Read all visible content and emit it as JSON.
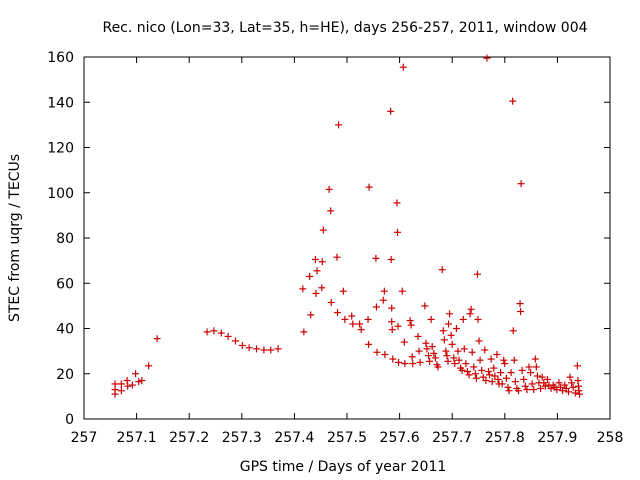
{
  "chart_data": {
    "type": "scatter",
    "title": "Rec. nico (Lon=33, Lat=35, h=HE), days 256-257, 2011, window 004",
    "xlabel": "GPS time / Days of year 2011",
    "ylabel": "STEC from uqrg / TECUs",
    "xlim": [
      257,
      258
    ],
    "ylim": [
      0,
      160
    ],
    "x_ticks": [
      "257",
      "257.1",
      "257.2",
      "257.3",
      "257.4",
      "257.5",
      "257.6",
      "257.7",
      "257.8",
      "257.9",
      "258"
    ],
    "y_ticks": [
      "0",
      "20",
      "40",
      "60",
      "80",
      "100",
      "120",
      "140",
      "160"
    ],
    "grid": false,
    "legend": "none",
    "marker": "+",
    "color": "#cc0000",
    "series": [
      {
        "points": [
          [
            257.059,
            15.5
          ],
          [
            257.059,
            13
          ],
          [
            257.059,
            11
          ],
          [
            257.071,
            15.5
          ],
          [
            257.071,
            12.5
          ],
          [
            257.082,
            17
          ],
          [
            257.083,
            14.5
          ],
          [
            257.092,
            15
          ],
          [
            257.098,
            20
          ],
          [
            257.104,
            16.5
          ],
          [
            257.11,
            17
          ],
          [
            257.123,
            23.5
          ],
          [
            257.139,
            35.5
          ],
          [
            257.234,
            38.5
          ],
          [
            257.247,
            39
          ],
          [
            257.261,
            38
          ],
          [
            257.274,
            36.5
          ],
          [
            257.288,
            34.5
          ],
          [
            257.301,
            32.5
          ],
          [
            257.314,
            31.5
          ],
          [
            257.328,
            31
          ],
          [
            257.342,
            30.5
          ],
          [
            257.355,
            30.5
          ],
          [
            257.369,
            31
          ],
          [
            257.416,
            57.5
          ],
          [
            257.418,
            38.5
          ],
          [
            257.429,
            63
          ],
          [
            257.431,
            46
          ],
          [
            257.44,
            70.5
          ],
          [
            257.441,
            55.5
          ],
          [
            257.443,
            65.5
          ],
          [
            257.452,
            58
          ],
          [
            257.453,
            69.5
          ],
          [
            257.455,
            83.5
          ],
          [
            257.466,
            101.5
          ],
          [
            257.469,
            92
          ],
          [
            257.47,
            51.5
          ],
          [
            257.481,
            71.5
          ],
          [
            257.482,
            47
          ],
          [
            257.484,
            130
          ],
          [
            257.493,
            56.5
          ],
          [
            257.496,
            44
          ],
          [
            257.509,
            45.5
          ],
          [
            257.511,
            42
          ],
          [
            257.524,
            42
          ],
          [
            257.527,
            39.5
          ],
          [
            257.54,
            44
          ],
          [
            257.541,
            33
          ],
          [
            257.542,
            102.5
          ],
          [
            257.555,
            71
          ],
          [
            257.556,
            49.5
          ],
          [
            257.557,
            29.5
          ],
          [
            257.569,
            52.5
          ],
          [
            257.571,
            56.5
          ],
          [
            257.572,
            28.5
          ],
          [
            257.583,
            136
          ],
          [
            257.584,
            70.5
          ],
          [
            257.585,
            49
          ],
          [
            257.585,
            43
          ],
          [
            257.586,
            39.5
          ],
          [
            257.587,
            26.5
          ],
          [
            257.595,
            95.5
          ],
          [
            257.596,
            82.5
          ],
          [
            257.597,
            41
          ],
          [
            257.598,
            25
          ],
          [
            257.605,
            56.5
          ],
          [
            257.607,
            155.5
          ],
          [
            257.609,
            34
          ],
          [
            257.61,
            24.5
          ],
          [
            257.62,
            43.5
          ],
          [
            257.622,
            41.5
          ],
          [
            257.624,
            27.5
          ],
          [
            257.625,
            24.5
          ],
          [
            257.635,
            36.5
          ],
          [
            257.637,
            30
          ],
          [
            257.639,
            25
          ],
          [
            257.648,
            50
          ],
          [
            257.65,
            33.5
          ],
          [
            257.652,
            31
          ],
          [
            257.655,
            28
          ],
          [
            257.657,
            25.5
          ],
          [
            257.66,
            44
          ],
          [
            257.662,
            32
          ],
          [
            257.665,
            29
          ],
          [
            257.668,
            27
          ],
          [
            257.671,
            24
          ],
          [
            257.673,
            23
          ],
          [
            257.681,
            66
          ],
          [
            257.683,
            39
          ],
          [
            257.685,
            35
          ],
          [
            257.688,
            30
          ],
          [
            257.69,
            28
          ],
          [
            257.692,
            25.5
          ],
          [
            257.693,
            42
          ],
          [
            257.695,
            46.5
          ],
          [
            257.698,
            37
          ],
          [
            257.7,
            33
          ],
          [
            257.703,
            27
          ],
          [
            257.705,
            24.5
          ],
          [
            257.708,
            40
          ],
          [
            257.711,
            30
          ],
          [
            257.713,
            26
          ],
          [
            257.716,
            22.5
          ],
          [
            257.719,
            21.5
          ],
          [
            257.721,
            44
          ],
          [
            257.723,
            31
          ],
          [
            257.726,
            24.5
          ],
          [
            257.729,
            21
          ],
          [
            257.732,
            19.5
          ],
          [
            257.734,
            46.5
          ],
          [
            257.736,
            48.5
          ],
          [
            257.738,
            29.5
          ],
          [
            257.741,
            23
          ],
          [
            257.744,
            20
          ],
          [
            257.746,
            18
          ],
          [
            257.748,
            64
          ],
          [
            257.749,
            44
          ],
          [
            257.751,
            34.5
          ],
          [
            257.753,
            26
          ],
          [
            257.756,
            21.5
          ],
          [
            257.759,
            18.5
          ],
          [
            257.762,
            30.5
          ],
          [
            257.764,
            17
          ],
          [
            257.766,
            159.5
          ],
          [
            257.769,
            21
          ],
          [
            257.771,
            19.5
          ],
          [
            257.774,
            26.5
          ],
          [
            257.776,
            16.5
          ],
          [
            257.779,
            22.5
          ],
          [
            257.781,
            19
          ],
          [
            257.785,
            28.5
          ],
          [
            257.787,
            17.5
          ],
          [
            257.789,
            15.5
          ],
          [
            257.792,
            20.5
          ],
          [
            257.795,
            15.5
          ],
          [
            257.798,
            26
          ],
          [
            257.8,
            24.5
          ],
          [
            257.803,
            18
          ],
          [
            257.806,
            14
          ],
          [
            257.808,
            12.5
          ],
          [
            257.812,
            20.5
          ],
          [
            257.815,
            140.5
          ],
          [
            257.816,
            39
          ],
          [
            257.818,
            26
          ],
          [
            257.82,
            16.5
          ],
          [
            257.823,
            13.5
          ],
          [
            257.826,
            12.5
          ],
          [
            257.829,
            51
          ],
          [
            257.83,
            47.5
          ],
          [
            257.831,
            104
          ],
          [
            257.833,
            21.5
          ],
          [
            257.836,
            17.5
          ],
          [
            257.839,
            14.5
          ],
          [
            257.842,
            13
          ],
          [
            257.846,
            23
          ],
          [
            257.849,
            20.5
          ],
          [
            257.852,
            15.5
          ],
          [
            257.855,
            13
          ],
          [
            257.858,
            26.5
          ],
          [
            257.86,
            23
          ],
          [
            257.862,
            19
          ],
          [
            257.865,
            16
          ],
          [
            257.868,
            13.5
          ],
          [
            257.871,
            18.5
          ],
          [
            257.874,
            16
          ],
          [
            257.877,
            14.5
          ],
          [
            257.881,
            17.5
          ],
          [
            257.884,
            15
          ],
          [
            257.888,
            13.5
          ],
          [
            257.892,
            15
          ],
          [
            257.895,
            14
          ],
          [
            257.899,
            13
          ],
          [
            257.903,
            16
          ],
          [
            257.906,
            14
          ],
          [
            257.91,
            12.5
          ],
          [
            257.914,
            15
          ],
          [
            257.917,
            13.5
          ],
          [
            257.921,
            12
          ],
          [
            257.924,
            18.5
          ],
          [
            257.927,
            16
          ],
          [
            257.93,
            14
          ],
          [
            257.934,
            11.5
          ],
          [
            257.938,
            23.5
          ],
          [
            257.939,
            17
          ],
          [
            257.94,
            14.5
          ],
          [
            257.941,
            12.5
          ],
          [
            257.942,
            11
          ]
        ]
      }
    ]
  }
}
